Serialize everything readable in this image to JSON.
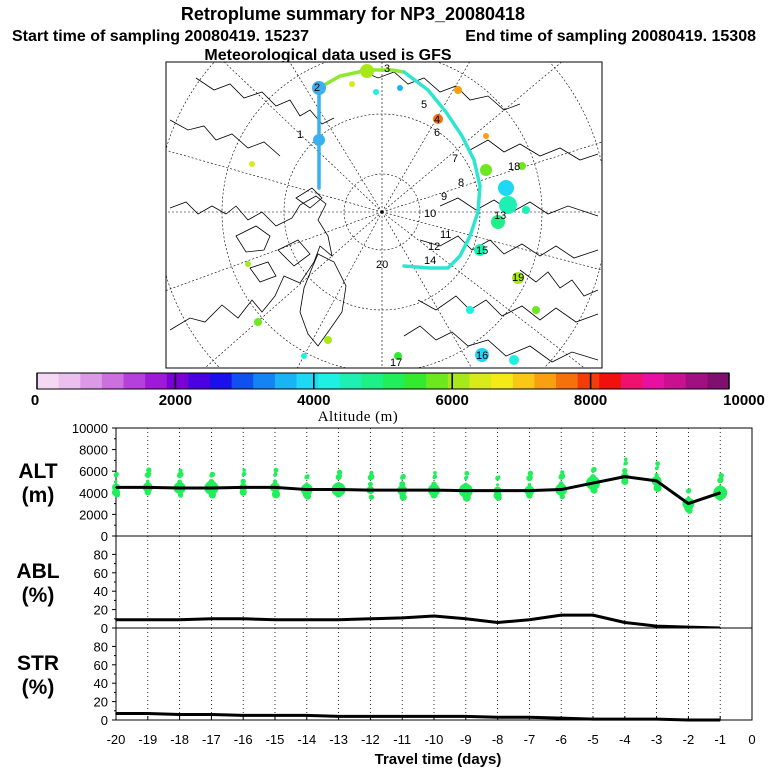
{
  "header": {
    "title": "Retroplume summary for NP3_20080418",
    "start": "Start time of sampling 20080419. 15237",
    "end": "End time of sampling 20080419. 15308",
    "met": "Meteorological data used is GFS"
  },
  "map": {
    "track_labels": [
      "1",
      "2",
      "3",
      "4",
      "5",
      "6",
      "7",
      "8",
      "9",
      "10",
      "11",
      "12",
      "13",
      "14",
      "15",
      "16",
      "17",
      "18",
      "19",
      "20"
    ],
    "colors": {
      "land_line": "#000000",
      "track_blue": "#3ab0f0",
      "track_cyan": "#2ee6d0",
      "track_green": "#8ee830"
    }
  },
  "colorbar": {
    "tick_labels": [
      "0",
      "2000",
      "4000",
      "6000",
      "8000",
      "10000"
    ],
    "ticks": [
      0,
      2000,
      4000,
      6000,
      8000,
      10000
    ],
    "min": 0,
    "max": 10000,
    "label": "Altitude (m)",
    "colors": [
      "#f4d8f4",
      "#ecc0ee",
      "#dc9ae6",
      "#cc70e0",
      "#b640dc",
      "#9f1ad8",
      "#7a00d8",
      "#4a00e0",
      "#1a10ec",
      "#1050f0",
      "#1284f4",
      "#18b4f6",
      "#1ed8f4",
      "#1ef0e4",
      "#1ef0b4",
      "#1ef088",
      "#20ee5a",
      "#34ea2e",
      "#6ee81e",
      "#a8e81a",
      "#d8ea1a",
      "#f4ea18",
      "#f8c814",
      "#f8a010",
      "#f6700c",
      "#f43c0a",
      "#f0100e",
      "#f0106e",
      "#e810a0",
      "#c81090",
      "#a01080",
      "#801070"
    ]
  },
  "chart_data": [
    {
      "type": "line",
      "panel": "ALT",
      "ylabel_line1": "ALT",
      "ylabel_line2": "(m)",
      "ylim": [
        0,
        10000
      ],
      "ytick_labels": [
        "0",
        "2000",
        "4000",
        "6000",
        "8000",
        "10000"
      ],
      "yticks": [
        0,
        2000,
        4000,
        6000,
        8000,
        10000
      ],
      "x": [
        -20,
        -19,
        -18,
        -17,
        -16,
        -15,
        -14,
        -13,
        -12,
        -11,
        -10,
        -9,
        -8,
        -7,
        -6,
        -5,
        -4,
        -3,
        -2,
        -1
      ],
      "values": [
        4500,
        4500,
        4450,
        4450,
        4500,
        4500,
        4300,
        4300,
        4250,
        4250,
        4250,
        4200,
        4200,
        4200,
        4300,
        4900,
        5500,
        5100,
        3000,
        4000
      ]
    },
    {
      "type": "line",
      "panel": "ABL",
      "ylabel_line1": "ABL",
      "ylabel_line2": "(%)",
      "ylim": [
        0,
        100
      ],
      "ytick_labels": [
        "0",
        "20",
        "40",
        "60",
        "80"
      ],
      "yticks": [
        0,
        20,
        40,
        60,
        80
      ],
      "x": [
        -20,
        -19,
        -18,
        -17,
        -16,
        -15,
        -14,
        -13,
        -12,
        -11,
        -10,
        -9,
        -8,
        -7,
        -6,
        -5,
        -4,
        -3,
        -2,
        -1
      ],
      "values": [
        9,
        9,
        9,
        10,
        10,
        9,
        9,
        9,
        10,
        11,
        13,
        10,
        6,
        9,
        14,
        14,
        6,
        2,
        1,
        0
      ]
    },
    {
      "type": "line",
      "panel": "STR",
      "ylabel_line1": "STR",
      "ylabel_line2": "(%)",
      "ylim": [
        0,
        100
      ],
      "ytick_labels": [
        "0",
        "20",
        "40",
        "60",
        "80"
      ],
      "yticks": [
        0,
        20,
        40,
        60,
        80
      ],
      "x": [
        -20,
        -19,
        -18,
        -17,
        -16,
        -15,
        -14,
        -13,
        -12,
        -11,
        -10,
        -9,
        -8,
        -7,
        -6,
        -5,
        -4,
        -3,
        -2,
        -1
      ],
      "values": [
        7,
        7,
        6,
        6,
        5,
        5,
        5,
        4,
        4,
        4,
        4,
        4,
        3,
        3,
        2,
        1,
        1,
        1,
        0,
        0
      ]
    }
  ],
  "xaxis": {
    "label": "Travel time (days)",
    "tick_labels": [
      "-20",
      "-19",
      "-18",
      "-17",
      "-16",
      "-15",
      "-14",
      "-13",
      "-12",
      "-11",
      "-10",
      "-9",
      "-8",
      "-7",
      "-6",
      "-5",
      "-4",
      "-3",
      "-2",
      "-1",
      "0"
    ],
    "ticks": [
      -20,
      -19,
      -18,
      -17,
      -16,
      -15,
      -14,
      -13,
      -12,
      -11,
      -10,
      -9,
      -8,
      -7,
      -6,
      -5,
      -4,
      -3,
      -2,
      -1,
      0
    ],
    "xlim": [
      -20,
      0
    ]
  }
}
